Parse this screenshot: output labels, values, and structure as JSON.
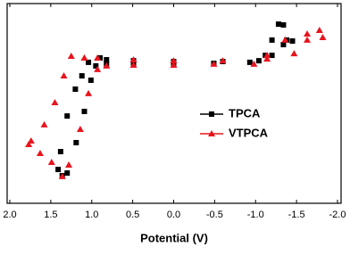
{
  "chart_data": {
    "type": "line",
    "x_label": "Potential (V)",
    "xlim": [
      2.0,
      -2.0
    ],
    "ylim": [
      0,
      100
    ],
    "xticks": [
      {
        "value": 2.0,
        "label": "2.0"
      },
      1.5,
      {
        "value": 1.0,
        "label": "1.0"
      },
      0.5,
      {
        "value": 0.0,
        "label": "0.0"
      },
      -0.5,
      {
        "value": -1.0,
        "label": "-1.0"
      },
      -1.5,
      {
        "value": -2.0,
        "label": "-2.0"
      }
    ],
    "legend": "center-right",
    "series": [
      {
        "name": "TPCA",
        "color": "#000000",
        "marker": "square",
        "x": [
          0.9,
          1.04,
          1.12,
          1.2,
          1.3,
          1.38,
          1.41,
          1.36,
          1.3,
          1.19,
          1.09,
          1.01,
          0.95,
          0.82,
          0.49,
          0.0,
          -0.49,
          -0.93,
          -1.12,
          -1.2,
          -1.28,
          -1.34,
          -1.38,
          -1.45,
          -1.34,
          -1.2,
          -1.04,
          -0.6,
          0.0,
          0.49,
          0.82,
          0.9
        ],
        "values": [
          73.1,
          70.9,
          64.1,
          57.4,
          43.9,
          26.0,
          17.0,
          13.9,
          15.2,
          30.5,
          46.2,
          61.9,
          69.1,
          70.0,
          70.4,
          70.4,
          70.4,
          70.9,
          74.4,
          82.1,
          90.1,
          89.7,
          82.1,
          81.6,
          79.8,
          74.4,
          71.7,
          71.3,
          71.3,
          71.7,
          72.2,
          73.1
        ]
      },
      {
        "name": "VTPCA",
        "color": "#e8141e",
        "marker": "triangle",
        "x": [
          1.09,
          1.25,
          1.34,
          1.45,
          1.58,
          1.74,
          1.77,
          1.63,
          1.49,
          1.36,
          1.28,
          1.14,
          1.04,
          0.93,
          0.82,
          0.49,
          0.0,
          -0.49,
          -0.98,
          -1.14,
          -1.36,
          -1.63,
          -1.78,
          -1.82,
          -1.63,
          -1.47,
          -1.14,
          -0.6,
          0.0,
          0.49,
          0.93,
          1.09
        ],
        "values": [
          73.1,
          74.0,
          64.1,
          50.7,
          39.5,
          31.4,
          29.6,
          25.1,
          20.6,
          13.5,
          19.3,
          37.2,
          55.2,
          67.3,
          69.1,
          69.5,
          69.5,
          70.0,
          70.0,
          74.4,
          82.1,
          85.2,
          87.0,
          83.4,
          82.1,
          75.3,
          72.6,
          71.7,
          71.7,
          72.2,
          73.1,
          73.1
        ]
      }
    ]
  }
}
